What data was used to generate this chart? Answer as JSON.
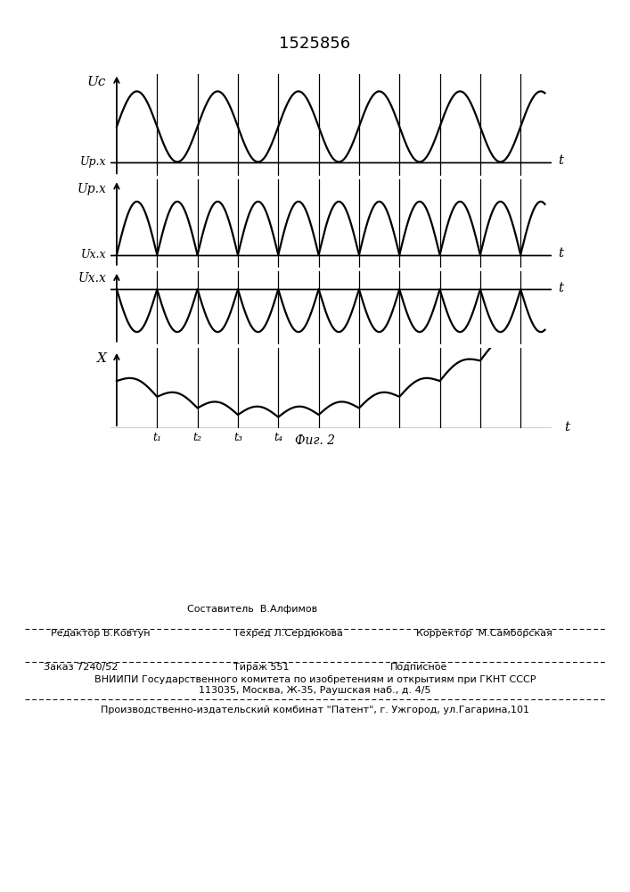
{
  "patent_number": "1525856",
  "fig_caption": "Фиг. 2",
  "background_color": "#ffffff",
  "line_color": "#000000",
  "subplot_labels_y": [
    "Uс",
    "Uр.х",
    "Uх.х",
    "X"
  ],
  "subplot_axis_t": [
    "t",
    "t",
    "t",
    "t"
  ],
  "level_label_1": "Uр.х",
  "level_label_2": "Uх.х",
  "time_labels": [
    "t₁",
    "t₂",
    "t₃",
    "t₄"
  ],
  "footer_sestavitel": "Составитель  В.Алфимов",
  "footer_redaktor": "Редактор В.Ковтун",
  "footer_tehred": "Техред Л.Сердюкова",
  "footer_korrektor": "Корректор  М.Самборская",
  "footer_zakaz": "Заказ 7240/52",
  "footer_tirazh": "Тираж 551",
  "footer_podpisnoe": "Подписное",
  "footer_vniip": "ВНИИПИ Государственного комитета по изобретениям и открытиям при ГКНТ СССР",
  "footer_addr": "113035, Москва, Ж-35, Раушская наб., д. 4/5",
  "footer_patent": "Производственно-издательский комбинат \"Патент\", г. Ужгород, ул.Гагарина,101",
  "num_cycles": 5.3,
  "vline_period": 3.14159265,
  "num_vlines": 10,
  "carrier_freq_mult": 1.0
}
